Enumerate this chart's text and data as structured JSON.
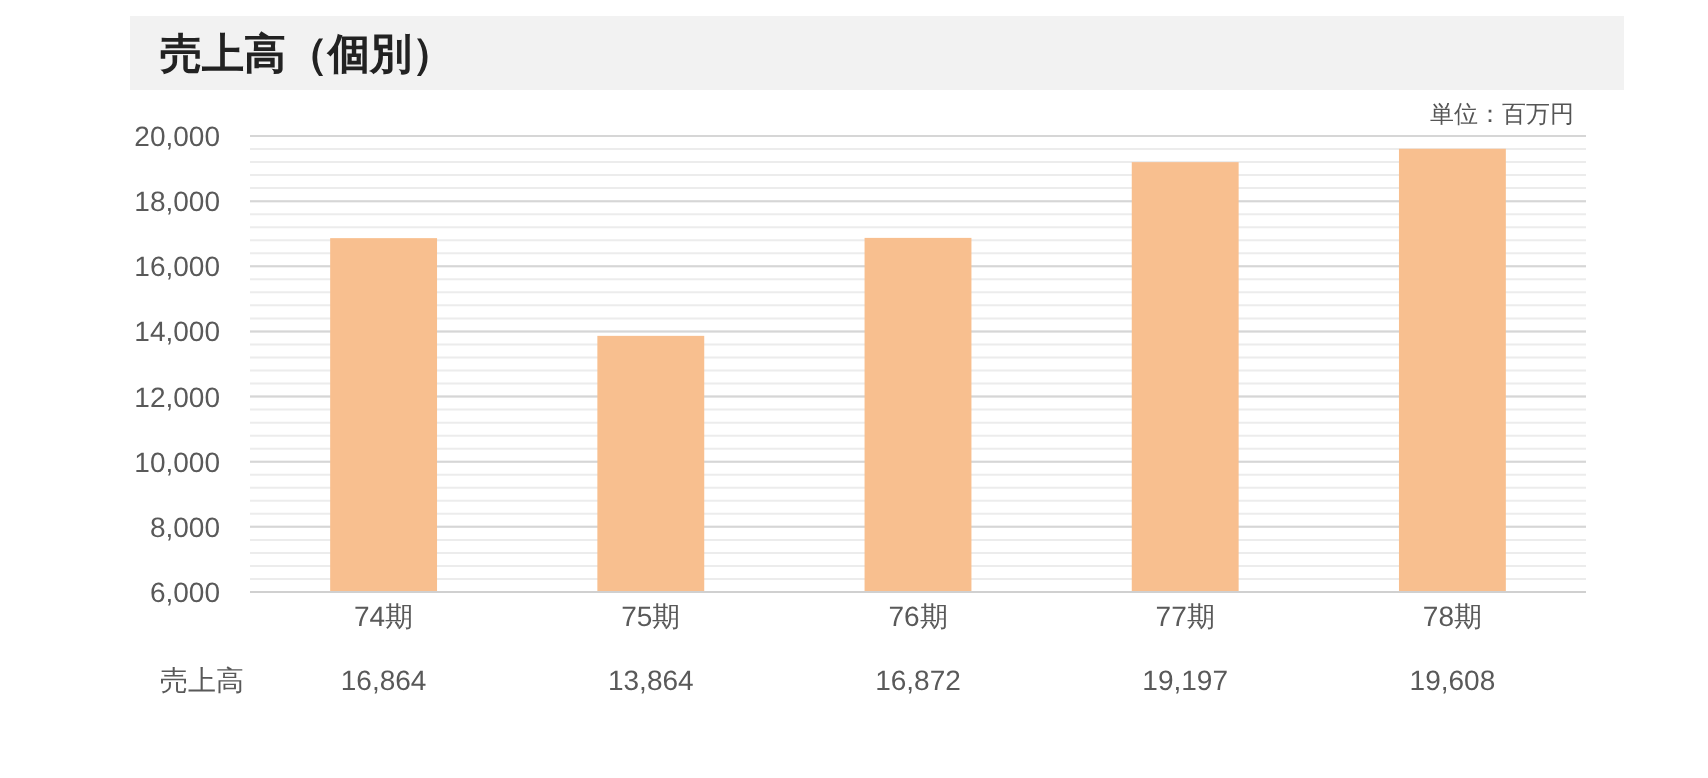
{
  "chart_data": {
    "type": "bar",
    "title": "売上高（個別）",
    "annotations": [
      "単位：百万円"
    ],
    "categories": [
      "74期",
      "75期",
      "76期",
      "77期",
      "78期"
    ],
    "series": [
      {
        "name": "売上高",
        "color": "#f8bf8f",
        "values": [
          16864,
          13864,
          16872,
          19197,
          19608
        ],
        "value_labels": [
          "16,864",
          "13,864",
          "16,872",
          "19,197",
          "19,608"
        ]
      }
    ],
    "ylim": [
      6000,
      20000
    ],
    "yticks": [
      {
        "value": 6000,
        "label": "6,000"
      },
      {
        "value": 8000,
        "label": "8,000"
      },
      {
        "value": 10000,
        "label": "10,000"
      },
      {
        "value": 12000,
        "label": "12,000"
      },
      {
        "value": 14000,
        "label": "14,000"
      },
      {
        "value": 16000,
        "label": "16,000"
      },
      {
        "value": 18000,
        "label": "18,000"
      },
      {
        "value": 20000,
        "label": "20,000"
      }
    ],
    "grid": "y"
  }
}
